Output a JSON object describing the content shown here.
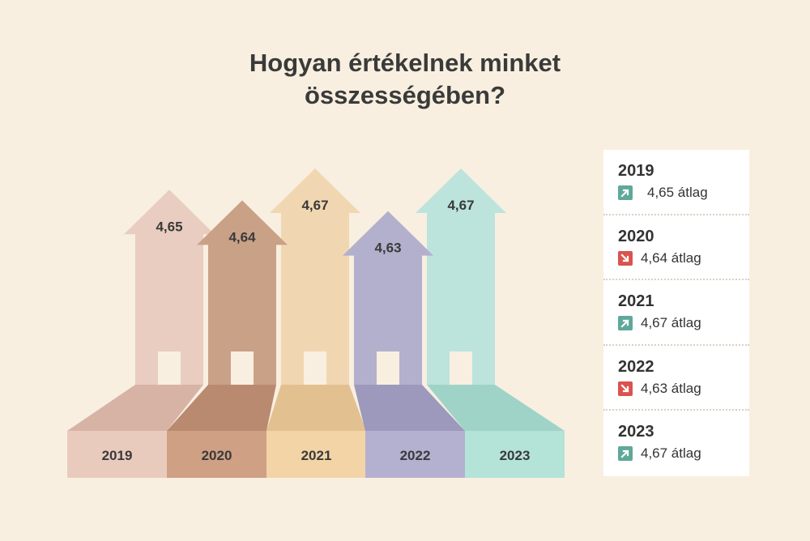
{
  "title": {
    "line1": "Hogyan értékelnek minket",
    "line2": "összességében?"
  },
  "colors": {
    "background": "#f8efe0",
    "up": "#5fa89a",
    "down": "#d9534f"
  },
  "chart_data": {
    "type": "bar",
    "title": "Hogyan értékelnek minket összességében?",
    "categories": [
      "2019",
      "2020",
      "2021",
      "2022",
      "2023"
    ],
    "values": [
      4.65,
      4.64,
      4.67,
      4.63,
      4.67
    ],
    "value_labels": [
      "4,65",
      "4,64",
      "4,67",
      "4,63",
      "4,67"
    ],
    "colors": [
      {
        "arrow": "#e8cdc0",
        "base_top": "#d7b3a6",
        "base_front": "#e9cbbd"
      },
      {
        "arrow": "#c9a187",
        "base_top": "#b98a70",
        "base_front": "#d0a084"
      },
      {
        "arrow": "#f1d7b1",
        "base_top": "#e2c090",
        "base_front": "#f2d4a7"
      },
      {
        "arrow": "#b3b0cd",
        "base_top": "#9d99bc",
        "base_front": "#b4b0d0"
      },
      {
        "arrow": "#bce4dc",
        "base_top": "#9fd3c7",
        "base_front": "#b4e3d8"
      }
    ]
  },
  "legend": [
    {
      "year": "2019",
      "trend": "up",
      "text": "4,65 átlag"
    },
    {
      "year": "2020",
      "trend": "down",
      "text": "4,64 átlag"
    },
    {
      "year": "2021",
      "trend": "up",
      "text": "4,67 átlag"
    },
    {
      "year": "2022",
      "trend": "down",
      "text": "4,63 átlag"
    },
    {
      "year": "2023",
      "trend": "up",
      "text": "4,67 átlag"
    }
  ]
}
